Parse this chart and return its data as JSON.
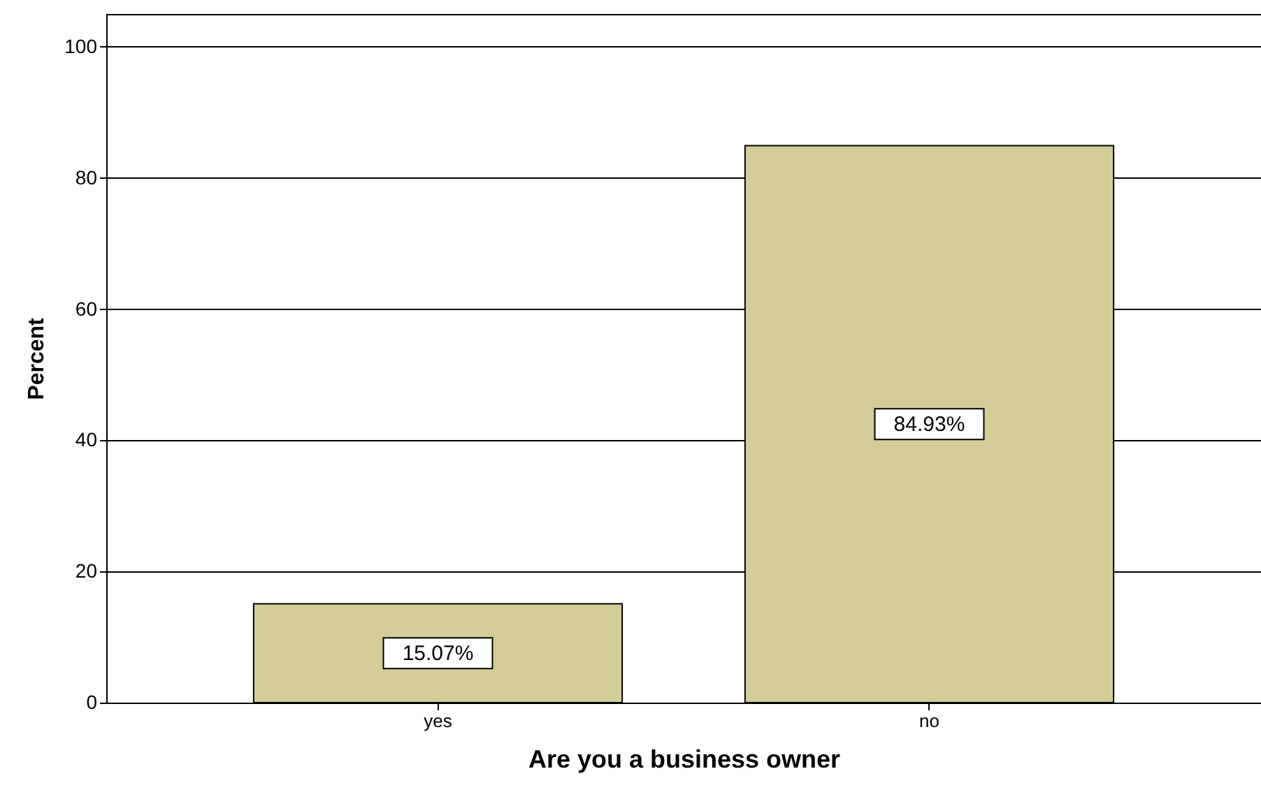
{
  "chart_data": {
    "type": "bar",
    "xlabel": "Are you a business owner",
    "ylabel": "Percent",
    "categories": [
      "yes",
      "no"
    ],
    "values": [
      15.07,
      84.93
    ],
    "value_labels": [
      "15.07%",
      "84.93%"
    ],
    "color": "#d3cd98",
    "ylim": [
      0,
      105
    ],
    "yticks": [
      0,
      20,
      40,
      60,
      80,
      100
    ],
    "grid": "y"
  }
}
